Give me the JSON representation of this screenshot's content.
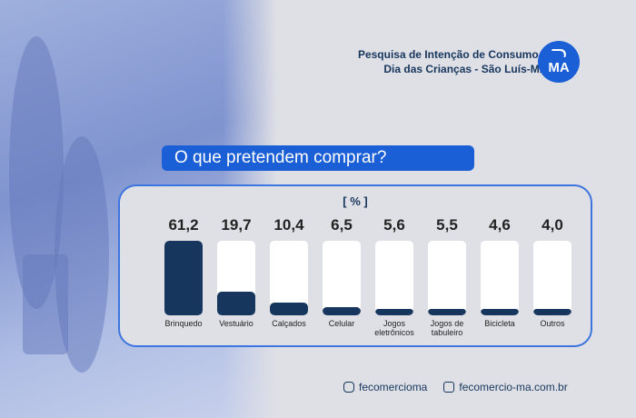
{
  "header": {
    "line1": "Pesquisa de Intenção de Consumo para o",
    "line2": "Dia das Crianças - São Luís-MA 2025",
    "logo": "MA"
  },
  "question": "O que pretendem comprar?",
  "chart_data": {
    "type": "bar",
    "unit": "[ % ]",
    "categories": [
      "Brinquedo",
      "Vestuário",
      "Calçados",
      "Celular",
      "Jogos eletrônicos",
      "Jogos de tabuleiro",
      "Bicicleta",
      "Outros"
    ],
    "values": [
      61.2,
      19.7,
      10.4,
      6.5,
      5.6,
      5.5,
      4.6,
      4.0
    ],
    "labels": [
      "61,2",
      "19,7",
      "10,4",
      "6,5",
      "5,6",
      "5,5",
      "4,6",
      "4,0"
    ],
    "ylim": [
      0,
      61.2
    ],
    "bar_color": "#17365d"
  },
  "footer": {
    "instagram": "fecomercioma",
    "site": "fecomercio-ma.com.br"
  }
}
